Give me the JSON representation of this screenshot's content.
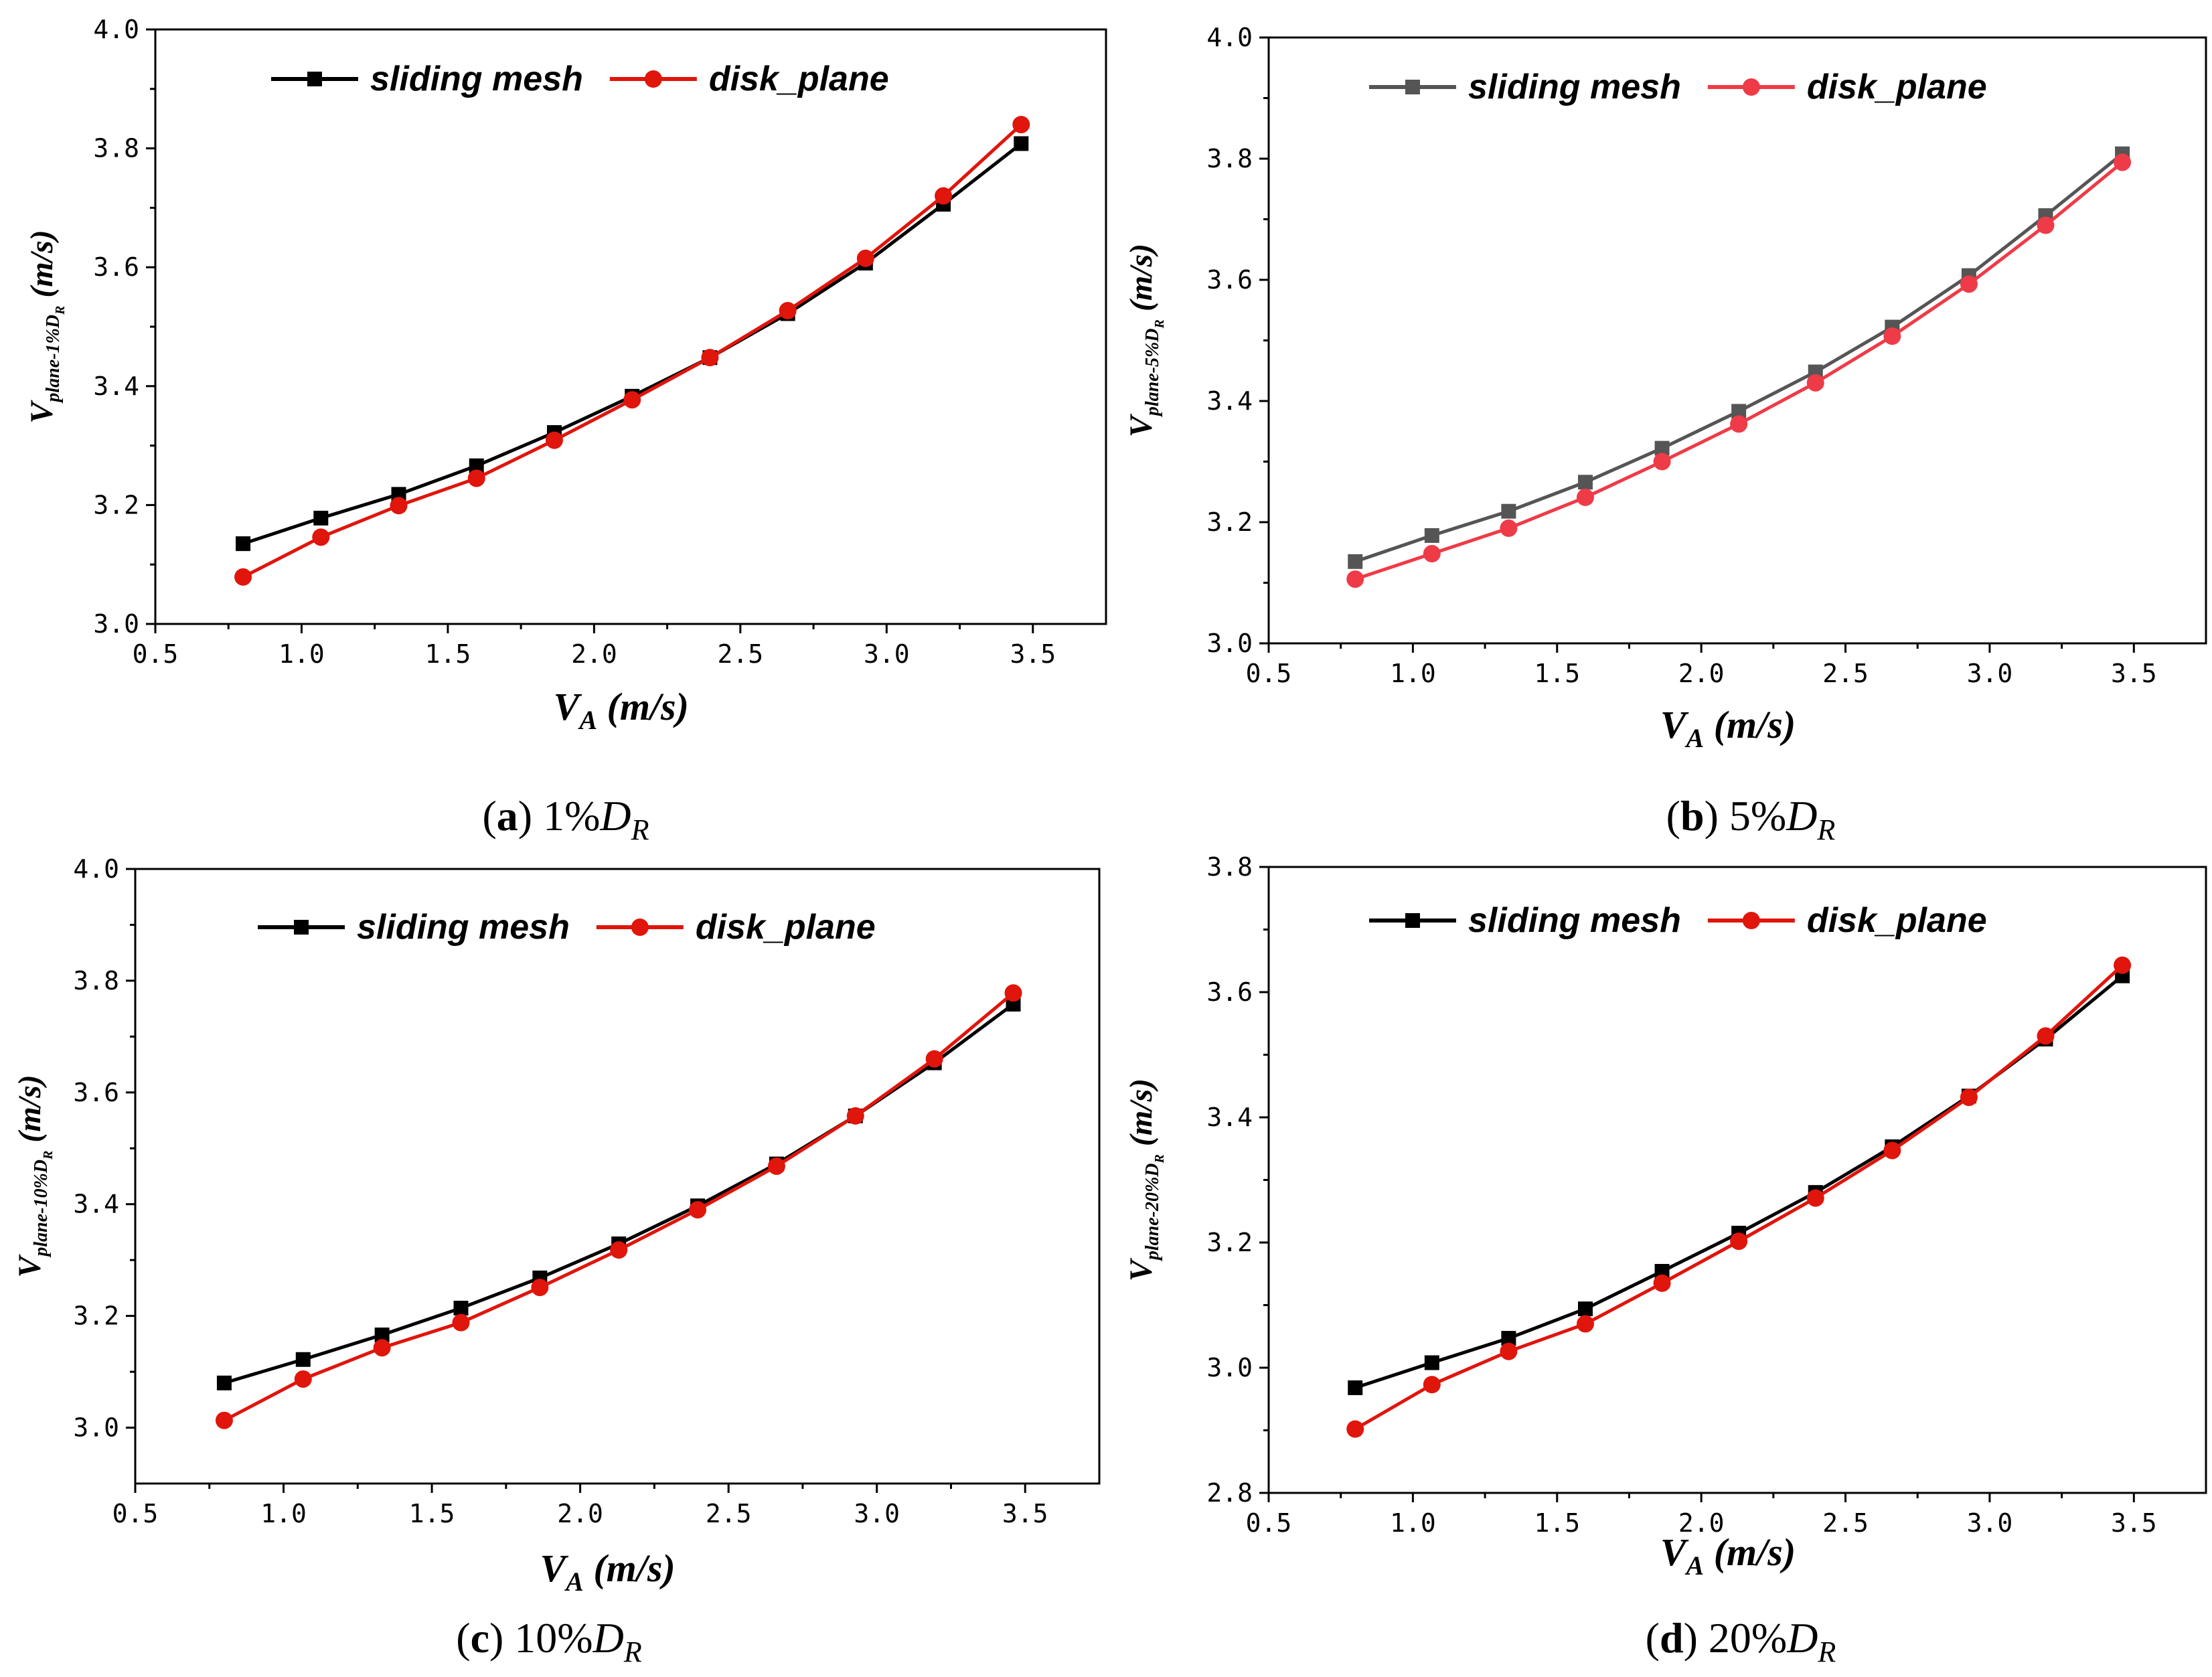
{
  "chart_data": [
    {
      "type": "line",
      "caption": {
        "letter": "a",
        "label": "1%",
        "var": "D",
        "sub": "R"
      },
      "xlabel": {
        "main": "V",
        "sub": "A",
        "unit": " (m/s)"
      },
      "ylabel": {
        "main": "V",
        "sub": "plane-1%D",
        "subsub": "R",
        "unit": " (m/s)"
      },
      "xlim": [
        0.5,
        3.75
      ],
      "ylim": [
        3.0,
        4.0
      ],
      "xticks": [
        "0.5",
        "1.0",
        "1.5",
        "2.0",
        "2.5",
        "3.0",
        "3.5"
      ],
      "yticks": [
        "3.0",
        "3.2",
        "3.4",
        "3.6",
        "3.8",
        "4.0"
      ],
      "x": [
        0.8,
        1.066,
        1.332,
        1.598,
        1.864,
        2.13,
        2.396,
        2.662,
        2.928,
        3.194,
        3.46
      ],
      "series": [
        {
          "name": "sliding mesh",
          "marker": "square",
          "color": "#000000",
          "values": [
            3.135,
            3.178,
            3.218,
            3.266,
            3.322,
            3.383,
            3.448,
            3.522,
            3.607,
            3.706,
            3.808
          ]
        },
        {
          "name": "disk_plane",
          "marker": "circle",
          "color": "#e0150c",
          "values": [
            3.079,
            3.146,
            3.199,
            3.245,
            3.309,
            3.377,
            3.448,
            3.527,
            3.615,
            3.72,
            3.84
          ]
        }
      ],
      "legend": "top"
    },
    {
      "type": "line",
      "caption": {
        "letter": "b",
        "label": "5%",
        "var": "D",
        "sub": "R"
      },
      "xlabel": {
        "main": "V",
        "sub": "A",
        "unit": " (m/s)"
      },
      "ylabel": {
        "main": "V",
        "sub": "plane-5%D",
        "subsub": "R",
        "unit": " (m/s)"
      },
      "xlim": [
        0.5,
        3.75
      ],
      "ylim": [
        3.0,
        4.0
      ],
      "xticks": [
        "0.5",
        "1.0",
        "1.5",
        "2.0",
        "2.5",
        "3.0",
        "3.5"
      ],
      "yticks": [
        "3.0",
        "3.2",
        "3.4",
        "3.6",
        "3.8",
        "4.0"
      ],
      "x": [
        0.8,
        1.066,
        1.332,
        1.598,
        1.864,
        2.13,
        2.396,
        2.662,
        2.928,
        3.194,
        3.46
      ],
      "series": [
        {
          "name": "sliding mesh",
          "marker": "square",
          "color": "#555555",
          "values": [
            3.135,
            3.178,
            3.218,
            3.266,
            3.322,
            3.383,
            3.448,
            3.522,
            3.607,
            3.706,
            3.808
          ]
        },
        {
          "name": "disk_plane",
          "marker": "circle",
          "color": "#ef3b47",
          "values": [
            3.106,
            3.148,
            3.19,
            3.241,
            3.3,
            3.362,
            3.43,
            3.507,
            3.593,
            3.69,
            3.794
          ]
        }
      ],
      "legend": "top"
    },
    {
      "type": "line",
      "caption": {
        "letter": "c",
        "label": "10%",
        "var": "D",
        "sub": "R"
      },
      "xlabel": {
        "main": "V",
        "sub": "A",
        "unit": " (m/s)"
      },
      "ylabel": {
        "main": "V",
        "sub": "plane-10%D",
        "subsub": "R",
        "unit": " (m/s)"
      },
      "xlim": [
        0.5,
        3.75
      ],
      "ylim": [
        2.9,
        4.0
      ],
      "xticks": [
        "0.5",
        "1.0",
        "1.5",
        "2.0",
        "2.5",
        "3.0",
        "3.5"
      ],
      "yticks": [
        "3.0",
        "3.2",
        "3.4",
        "3.6",
        "3.8",
        "4.0"
      ],
      "x": [
        0.8,
        1.066,
        1.332,
        1.598,
        1.864,
        2.13,
        2.396,
        2.662,
        2.928,
        3.194,
        3.46
      ],
      "series": [
        {
          "name": "sliding mesh",
          "marker": "square",
          "color": "#000000",
          "values": [
            3.08,
            3.122,
            3.166,
            3.214,
            3.268,
            3.329,
            3.397,
            3.472,
            3.558,
            3.653,
            3.758
          ]
        },
        {
          "name": "disk_plane",
          "marker": "circle",
          "color": "#e0150c",
          "values": [
            3.013,
            3.087,
            3.143,
            3.188,
            3.251,
            3.318,
            3.39,
            3.468,
            3.558,
            3.66,
            3.778
          ]
        }
      ],
      "legend": "top"
    },
    {
      "type": "line",
      "caption": {
        "letter": "d",
        "label": "20%",
        "var": "D",
        "sub": "R"
      },
      "xlabel": {
        "main": "V",
        "sub": "A",
        "unit": " (m/s)"
      },
      "ylabel": {
        "main": "V",
        "sub": "plane-20%D",
        "subsub": "R",
        "unit": " (m/s)"
      },
      "xlim": [
        0.5,
        3.75
      ],
      "ylim": [
        2.8,
        3.8
      ],
      "xticks": [
        "0.5",
        "1.0",
        "1.5",
        "2.0",
        "2.5",
        "3.0",
        "3.5"
      ],
      "yticks": [
        "2.8",
        "3.0",
        "3.2",
        "3.4",
        "3.6",
        "3.8"
      ],
      "x": [
        0.8,
        1.066,
        1.332,
        1.598,
        1.864,
        2.13,
        2.396,
        2.662,
        2.928,
        3.194,
        3.46
      ],
      "series": [
        {
          "name": "sliding mesh",
          "marker": "square",
          "color": "#000000",
          "values": [
            2.968,
            3.008,
            3.047,
            3.094,
            3.154,
            3.215,
            3.28,
            3.353,
            3.434,
            3.525,
            3.626
          ]
        },
        {
          "name": "disk_plane",
          "marker": "circle",
          "color": "#e0150c",
          "values": [
            2.902,
            2.973,
            3.026,
            3.07,
            3.135,
            3.202,
            3.271,
            3.347,
            3.432,
            3.53,
            3.643
          ]
        }
      ],
      "legend": "top"
    }
  ]
}
